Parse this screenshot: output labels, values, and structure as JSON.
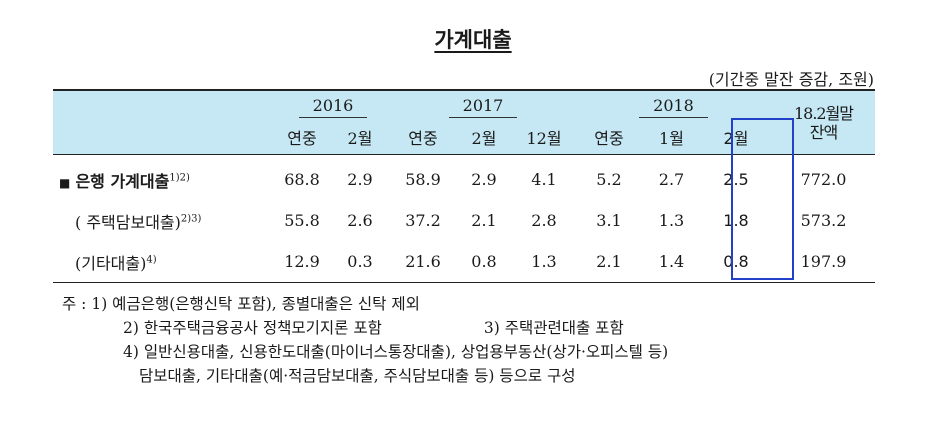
{
  "title": "가계대출",
  "unit": "(기간중 말잔 증감, 조원)",
  "header": {
    "years": [
      "2016",
      "2017",
      "2018"
    ],
    "balance_label_line1": "18.2월말",
    "balance_label_line2": "잔액",
    "subcols": [
      "연중",
      "2월",
      "연중",
      "2월",
      "12월",
      "연중",
      "1월",
      "2월"
    ]
  },
  "rows": [
    {
      "marker": "■",
      "label": "은행 가계대출",
      "sup": "1)2)",
      "values": [
        "68.8",
        "2.9",
        "58.9",
        "2.9",
        "4.1",
        "5.2",
        "2.7",
        "2.5",
        "772.0"
      ]
    },
    {
      "label": "( 주택담보대출)",
      "sup": "2)3)",
      "values": [
        "55.8",
        "2.6",
        "37.2",
        "2.1",
        "2.8",
        "3.1",
        "1.3",
        "1.8",
        "573.2"
      ]
    },
    {
      "label": "(기타대출)",
      "sup": "4)",
      "values": [
        "12.9",
        "0.3",
        "21.6",
        "0.8",
        "1.3",
        "2.1",
        "1.4",
        "0.8",
        "197.9"
      ]
    }
  ],
  "notes": {
    "line1": "주 : 1) 예금은행(은행신탁 포함), 종별대출은 신탁 제외",
    "line2a": "2) 한국주택금융공사 정책모기지론 포함",
    "line2b": "3) 주택관련대출 포함",
    "line3": "4) 일반신용대출, 신용한도대출(마이너스통장대출), 상업용부동산(상가·오피스텔 등)",
    "line4": "담보대출, 기타대출(예·적금담보대출, 주식담보대출 등) 등으로 구성"
  },
  "highlight_color": "#2340c9",
  "header_bg": "#c5e8f4"
}
